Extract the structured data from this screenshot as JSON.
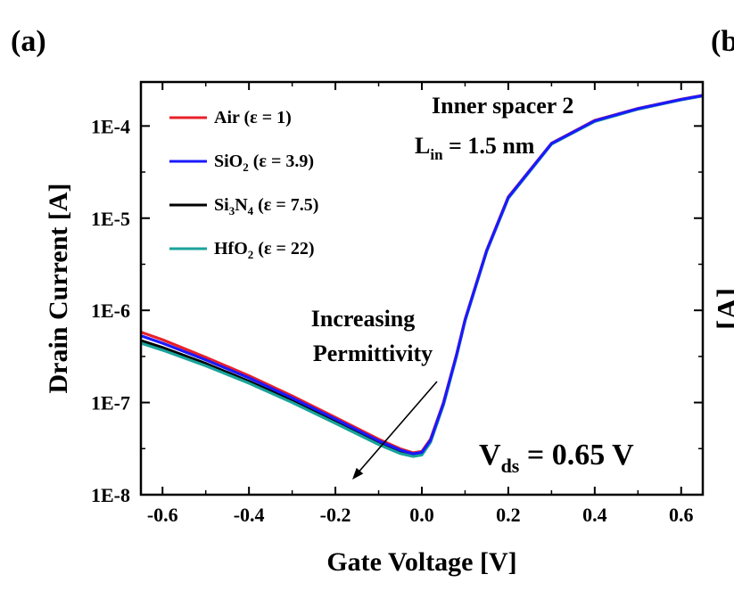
{
  "figure": {
    "panel_label": "(a)",
    "next_panel_label": "(b",
    "next_panel_ylabel_fragment": "[A]"
  },
  "chart_data": {
    "type": "line",
    "xlabel": "Gate Voltage [V]",
    "ylabel": "Drain Current [A]",
    "xlim": [
      -0.65,
      0.65
    ],
    "ylim": [
      1e-08,
      0.0003
    ],
    "y_scale": "log",
    "x_ticks": [
      "-0.6",
      "-0.4",
      "-0.2",
      "0.0",
      "0.2",
      "0.4",
      "0.6"
    ],
    "y_ticks": [
      "1E-8",
      "1E-7",
      "1E-6",
      "1E-5",
      "1E-4"
    ],
    "grid": false,
    "legend_placement": "top-left",
    "series": [
      {
        "name": "Air (ε = 1)",
        "name_parts": {
          "main": "Air",
          "sub": "",
          "rest": " (ε = 1)"
        },
        "color": "#e8202a",
        "x": [
          -0.65,
          -0.6,
          -0.5,
          -0.4,
          -0.3,
          -0.2,
          -0.1,
          -0.05,
          -0.02,
          0.0,
          0.02,
          0.05,
          0.08,
          0.1,
          0.15,
          0.2,
          0.3,
          0.4,
          0.5,
          0.6,
          0.65
        ],
        "y": [
          5.8e-07,
          4.8e-07,
          3.1e-07,
          1.95e-07,
          1.18e-07,
          6.9e-08,
          4e-08,
          3.15e-08,
          2.85e-08,
          2.95e-08,
          4e-08,
          1e-07,
          3.3e-07,
          8e-07,
          4.5e-06,
          1.7e-05,
          6.5e-05,
          0.000115,
          0.000155,
          0.000195,
          0.000215
        ]
      },
      {
        "name": "SiO2 (ε = 3.9)",
        "name_parts": {
          "main": "SiO",
          "sub": "2",
          "rest": " (ε = 3.9)"
        },
        "color": "#1a1aff",
        "x": [
          -0.65,
          -0.6,
          -0.5,
          -0.4,
          -0.3,
          -0.2,
          -0.1,
          -0.05,
          -0.02,
          0.0,
          0.02,
          0.05,
          0.08,
          0.1,
          0.15,
          0.2,
          0.3,
          0.4,
          0.5,
          0.6,
          0.65
        ],
        "y": [
          5.3e-07,
          4.4e-07,
          2.9e-07,
          1.85e-07,
          1.12e-07,
          6.6e-08,
          3.85e-08,
          3.05e-08,
          2.78e-08,
          2.88e-08,
          3.9e-08,
          9.8e-08,
          3.25e-07,
          7.9e-07,
          4.45e-06,
          1.68e-05,
          6.45e-05,
          0.000114,
          0.000154,
          0.000194,
          0.000214
        ]
      },
      {
        "name": "Si3N4 (ε = 7.5)",
        "name_parts": {
          "main": "Si",
          "sub": "3",
          "main2": "N",
          "sub2": "4",
          "rest": " (ε = 7.5)"
        },
        "color": "#000000",
        "x": [
          -0.65,
          -0.6,
          -0.5,
          -0.4,
          -0.3,
          -0.2,
          -0.1,
          -0.05,
          -0.02,
          0.0,
          0.02,
          0.05,
          0.08,
          0.1,
          0.15,
          0.2,
          0.3,
          0.4,
          0.5,
          0.6,
          0.65
        ],
        "y": [
          4.7e-07,
          3.95e-07,
          2.65e-07,
          1.7e-07,
          1.05e-07,
          6.2e-08,
          3.65e-08,
          2.9e-08,
          2.68e-08,
          2.78e-08,
          3.8e-08,
          9.6e-08,
          3.2e-07,
          7.8e-07,
          4.4e-06,
          1.66e-05,
          6.4e-05,
          0.000113,
          0.000153,
          0.000193,
          0.000213
        ]
      },
      {
        "name": "HfO2 (ε = 22)",
        "name_parts": {
          "main": "HfO",
          "sub": "2",
          "rest": " (ε = 22)"
        },
        "color": "#1aa39a",
        "x": [
          -0.65,
          -0.6,
          -0.5,
          -0.4,
          -0.3,
          -0.2,
          -0.1,
          -0.05,
          -0.02,
          0.0,
          0.02,
          0.05,
          0.08,
          0.1,
          0.15,
          0.2,
          0.3,
          0.4,
          0.5,
          0.6,
          0.65
        ],
        "y": [
          4.4e-07,
          3.7e-07,
          2.5e-07,
          1.62e-07,
          1e-07,
          5.95e-08,
          3.5e-08,
          2.8e-08,
          2.6e-08,
          2.7e-08,
          3.7e-08,
          9.4e-08,
          3.15e-07,
          7.7e-07,
          4.35e-06,
          1.64e-05,
          6.35e-05,
          0.000112,
          0.000152,
          0.000192,
          0.000212
        ]
      }
    ],
    "annotations": {
      "spacer": "Inner spacer 2",
      "lin_main": "L",
      "lin_sub": "in",
      "lin_rest": " = 1.5 nm",
      "increasing": "Increasing",
      "permittivity": "Permittivity",
      "vds_main": "V",
      "vds_sub": "ds",
      "vds_rest": " = 0.65 V"
    }
  }
}
